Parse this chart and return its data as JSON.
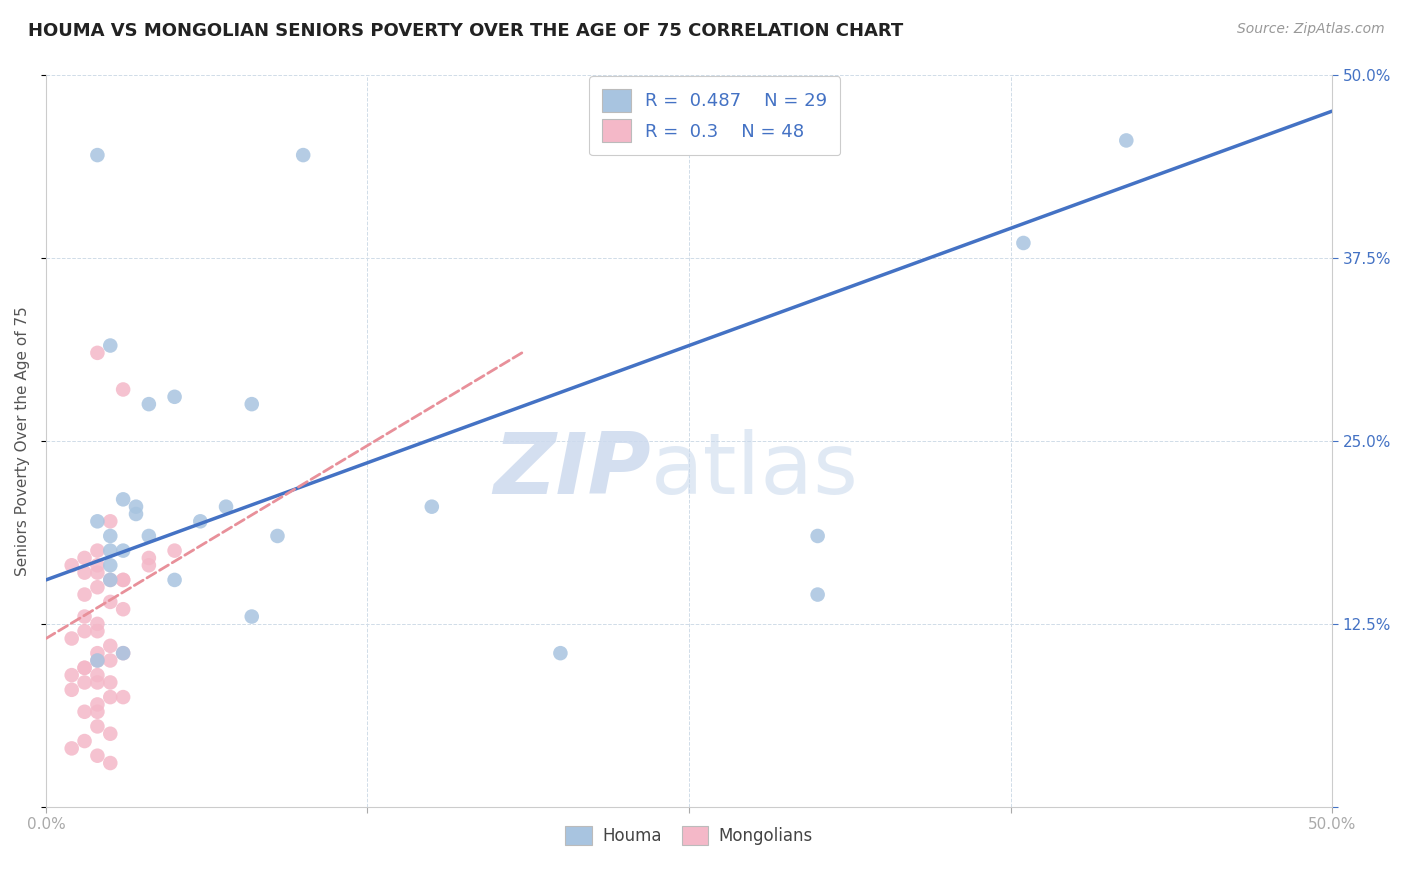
{
  "title": "HOUMA VS MONGOLIAN SENIORS POVERTY OVER THE AGE OF 75 CORRELATION CHART",
  "source": "Source: ZipAtlas.com",
  "ylabel": "Seniors Poverty Over the Age of 75",
  "xlim": [
    0,
    0.5
  ],
  "ylim": [
    0,
    0.5
  ],
  "houma_R": 0.487,
  "houma_N": 29,
  "mongolian_R": 0.3,
  "mongolian_N": 48,
  "houma_color": "#a8c4e0",
  "mongolian_color": "#f4b8c8",
  "houma_line_color": "#4472c4",
  "mongolian_line_color": "#e8909a",
  "houma_line": [
    0.0,
    0.155,
    0.5,
    0.475
  ],
  "mongolian_line": [
    0.0,
    0.115,
    0.185,
    0.31
  ],
  "houma_x": [
    0.02,
    0.1,
    0.025,
    0.04,
    0.05,
    0.06,
    0.08,
    0.03,
    0.035,
    0.04,
    0.025,
    0.03,
    0.025,
    0.035,
    0.02,
    0.025,
    0.07,
    0.09,
    0.3,
    0.3,
    0.38,
    0.42,
    0.05,
    0.15,
    0.08,
    0.025,
    0.03,
    0.02,
    0.2
  ],
  "houma_y": [
    0.445,
    0.445,
    0.315,
    0.275,
    0.28,
    0.195,
    0.275,
    0.21,
    0.205,
    0.185,
    0.185,
    0.175,
    0.165,
    0.2,
    0.195,
    0.155,
    0.205,
    0.185,
    0.185,
    0.145,
    0.385,
    0.455,
    0.155,
    0.205,
    0.13,
    0.175,
    0.105,
    0.1,
    0.105
  ],
  "mongolian_x": [
    0.02,
    0.03,
    0.025,
    0.02,
    0.015,
    0.01,
    0.02,
    0.025,
    0.02,
    0.015,
    0.025,
    0.03,
    0.02,
    0.015,
    0.01,
    0.02,
    0.025,
    0.015,
    0.02,
    0.015,
    0.01,
    0.025,
    0.02,
    0.015,
    0.03,
    0.04,
    0.02,
    0.015,
    0.025,
    0.03,
    0.02,
    0.015,
    0.01,
    0.025,
    0.02,
    0.015,
    0.01,
    0.02,
    0.025,
    0.02,
    0.015,
    0.03,
    0.04,
    0.05,
    0.02,
    0.025,
    0.03,
    0.02
  ],
  "mongolian_y": [
    0.31,
    0.285,
    0.195,
    0.175,
    0.17,
    0.165,
    0.16,
    0.155,
    0.15,
    0.145,
    0.14,
    0.135,
    0.125,
    0.12,
    0.115,
    0.105,
    0.1,
    0.095,
    0.09,
    0.085,
    0.08,
    0.075,
    0.07,
    0.065,
    0.155,
    0.165,
    0.12,
    0.13,
    0.11,
    0.105,
    0.1,
    0.095,
    0.09,
    0.085,
    0.065,
    0.045,
    0.04,
    0.035,
    0.03,
    0.165,
    0.16,
    0.155,
    0.17,
    0.175,
    0.055,
    0.05,
    0.075,
    0.085
  ]
}
